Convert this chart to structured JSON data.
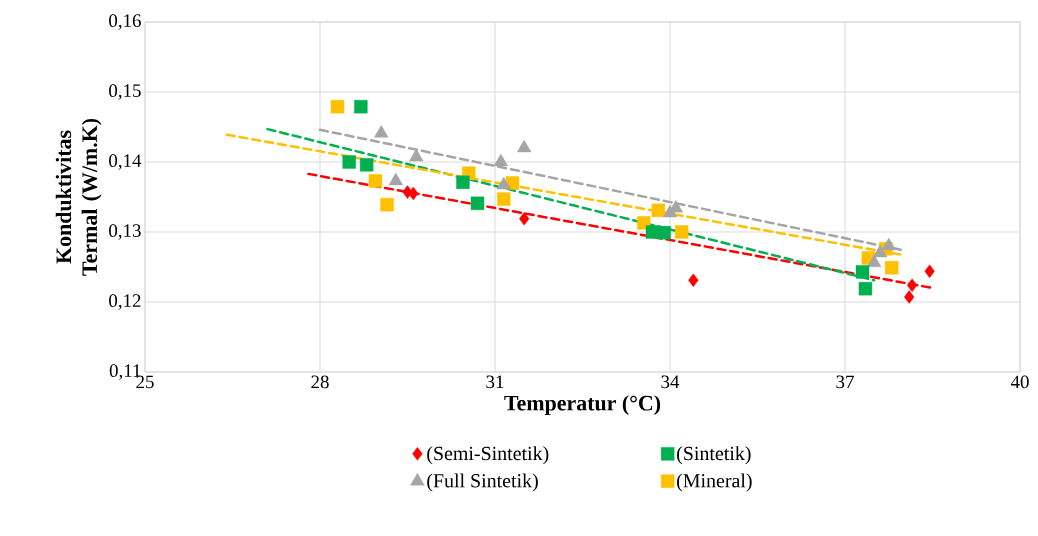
{
  "chart_data": {
    "type": "scatter",
    "xlabel": "Temperatur (°C)",
    "ylabel": "Konduktivitas Termal (W/m.K)",
    "xlim": [
      25,
      40
    ],
    "xticks": [
      25,
      28,
      31,
      34,
      37,
      40
    ],
    "ylim": [
      0.11,
      0.16
    ],
    "yticks": [
      {
        "value": 0.11,
        "label": "0,11"
      },
      {
        "value": 0.12,
        "label": "0,12"
      },
      {
        "value": 0.13,
        "label": "0,13"
      },
      {
        "value": 0.14,
        "label": "0,14"
      },
      {
        "value": 0.15,
        "label": "0,15"
      },
      {
        "value": 0.16,
        "label": "0,16"
      }
    ],
    "grid": true,
    "legend": "bottom",
    "series": [
      {
        "name": "(Semi-Sintetik)",
        "color": "#ff0000",
        "marker": "diamond",
        "x": [
          29.5,
          29.6,
          31.5,
          34.4,
          38.1,
          38.15,
          38.45
        ],
        "values": [
          0.1357,
          0.1355,
          0.1319,
          0.1231,
          0.1207,
          0.1224,
          0.1244
        ]
      },
      {
        "name": "(Sintetik)",
        "color": "#00b050",
        "marker": "square",
        "x": [
          28.7,
          28.5,
          28.8,
          30.45,
          30.7,
          33.7,
          33.9,
          37.3,
          37.35
        ],
        "values": [
          0.1479,
          0.14,
          0.1396,
          0.1371,
          0.1341,
          0.13,
          0.1299,
          0.1243,
          0.1219
        ]
      },
      {
        "name": "(Full Sintetik)",
        "color": "#a5a5a5",
        "marker": "triangle",
        "x": [
          29.05,
          29.65,
          29.3,
          31.1,
          31.5,
          31.15,
          34.1,
          34.0,
          37.5,
          37.75,
          37.6
        ],
        "values": [
          0.1441,
          0.1407,
          0.1373,
          0.14,
          0.142,
          0.1367,
          0.1334,
          0.1327,
          0.1256,
          0.128,
          0.127
        ]
      },
      {
        "name": "(Mineral)",
        "color": "#ffc000",
        "marker": "square",
        "x": [
          28.3,
          28.95,
          29.15,
          30.55,
          31.3,
          31.15,
          33.8,
          33.55,
          34.2,
          37.7,
          37.8,
          37.4
        ],
        "values": [
          0.1479,
          0.1373,
          0.1339,
          0.1384,
          0.137,
          0.1347,
          0.1331,
          0.1313,
          0.13,
          0.1276,
          0.1249,
          0.1263
        ]
      },
      {
        "type": "line",
        "color": "#ff0000",
        "line_style": "dashed",
        "x": [
          27.8,
          38.5
        ],
        "values": [
          0.1383,
          0.122
        ]
      },
      {
        "type": "line",
        "color": "#00b050",
        "line_style": "dashed",
        "x": [
          27.1,
          37.5
        ],
        "values": [
          0.1447,
          0.1231
        ]
      },
      {
        "type": "line",
        "color": "#a5a5a5",
        "line_style": "dashed",
        "x": [
          28.0,
          38.0
        ],
        "values": [
          0.1446,
          0.1274
        ]
      },
      {
        "type": "line",
        "color": "#ffc000",
        "line_style": "dashed",
        "x": [
          26.4,
          38.0
        ],
        "values": [
          0.1439,
          0.1267
        ]
      }
    ]
  }
}
